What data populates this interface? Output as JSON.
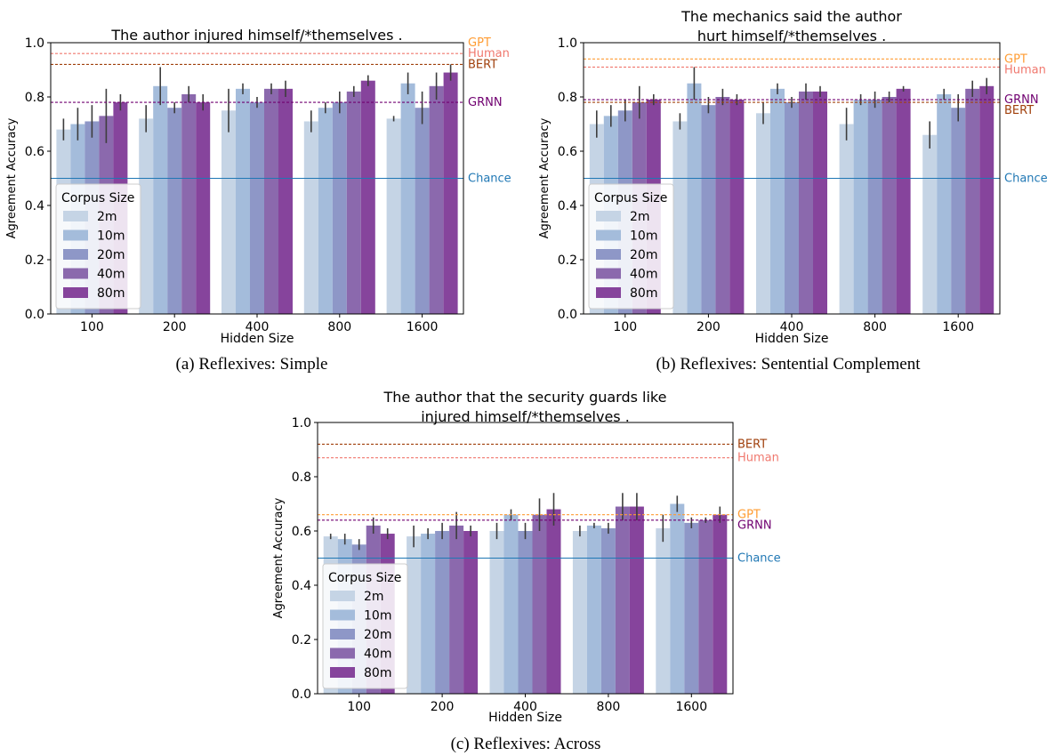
{
  "figure": {
    "corpus_sizes": [
      "2m",
      "10m",
      "20m",
      "40m",
      "80m"
    ],
    "colors": {
      "bars": [
        "#c5d4e5",
        "#a4bcdb",
        "#8e97c7",
        "#8b69ad",
        "#86449c"
      ],
      "errorbar": "#3d3d3d",
      "chance": "#1f77b4",
      "GPT": "#ff9c33",
      "Human": "#f0786e",
      "BERT": "#a0400c",
      "GRNN": "#700070"
    }
  },
  "chart_data": [
    {
      "type": "bar",
      "caption": "(a)  Reflexives: Simple",
      "title_lines": [
        "The author injured himself/*themselves ."
      ],
      "xlabel": "Hidden Size",
      "ylabel": "Agreement Accuracy",
      "ylim": [
        0,
        1
      ],
      "yticks": [
        "0.0",
        "0.2",
        "0.4",
        "0.6",
        "0.8",
        "1.0"
      ],
      "categories": [
        "100",
        "200",
        "400",
        "800",
        "1600"
      ],
      "legend": {
        "title": "Corpus Size",
        "position": "lower-left"
      },
      "series": [
        {
          "name": "2m",
          "values": [
            0.68,
            0.72,
            0.75,
            0.71,
            0.72
          ],
          "err": [
            0.04,
            0.05,
            0.08,
            0.04,
            0.01
          ]
        },
        {
          "name": "10m",
          "values": [
            0.7,
            0.84,
            0.83,
            0.76,
            0.85
          ],
          "err": [
            0.06,
            0.07,
            0.02,
            0.02,
            0.04
          ]
        },
        {
          "name": "20m",
          "values": [
            0.71,
            0.76,
            0.78,
            0.78,
            0.76
          ],
          "err": [
            0.06,
            0.02,
            0.02,
            0.04,
            0.06
          ]
        },
        {
          "name": "40m",
          "values": [
            0.73,
            0.81,
            0.83,
            0.82,
            0.84
          ],
          "err": [
            0.1,
            0.03,
            0.02,
            0.02,
            0.05
          ]
        },
        {
          "name": "80m",
          "values": [
            0.78,
            0.78,
            0.83,
            0.86,
            0.89
          ],
          "err": [
            0.03,
            0.03,
            0.03,
            0.02,
            0.03
          ]
        }
      ],
      "reference_lines": [
        {
          "label": "GPT",
          "value": 1.0,
          "color": "#ff9c33",
          "style": "dashed"
        },
        {
          "label": "Human",
          "value": 0.96,
          "color": "#f0786e",
          "style": "dashed"
        },
        {
          "label": "BERT",
          "value": 0.92,
          "color": "#a0400c",
          "style": "dashed"
        },
        {
          "label": "GRNN",
          "value": 0.78,
          "color": "#700070",
          "style": "dashed"
        },
        {
          "label": "Chance",
          "value": 0.5,
          "color": "#1f77b4",
          "style": "solid"
        }
      ]
    },
    {
      "type": "bar",
      "caption": "(b)  Reflexives: Sentential Complement",
      "title_lines": [
        "The mechanics said the author",
        "hurt himself/*themselves ."
      ],
      "xlabel": "Hidden Size",
      "ylabel": "Agreement Accuracy",
      "ylim": [
        0,
        1
      ],
      "yticks": [
        "0.0",
        "0.2",
        "0.4",
        "0.6",
        "0.8",
        "1.0"
      ],
      "categories": [
        "100",
        "200",
        "400",
        "800",
        "1600"
      ],
      "legend": {
        "title": "Corpus Size",
        "position": "lower-left"
      },
      "series": [
        {
          "name": "2m",
          "values": [
            0.7,
            0.71,
            0.74,
            0.7,
            0.66
          ],
          "err": [
            0.05,
            0.03,
            0.04,
            0.06,
            0.05
          ]
        },
        {
          "name": "10m",
          "values": [
            0.73,
            0.85,
            0.83,
            0.79,
            0.81
          ],
          "err": [
            0.04,
            0.06,
            0.02,
            0.02,
            0.02
          ]
        },
        {
          "name": "20m",
          "values": [
            0.75,
            0.77,
            0.78,
            0.79,
            0.76
          ],
          "err": [
            0.04,
            0.03,
            0.02,
            0.03,
            0.05
          ]
        },
        {
          "name": "40m",
          "values": [
            0.78,
            0.8,
            0.82,
            0.8,
            0.83
          ],
          "err": [
            0.06,
            0.03,
            0.03,
            0.02,
            0.03
          ]
        },
        {
          "name": "80m",
          "values": [
            0.79,
            0.79,
            0.82,
            0.83,
            0.84
          ],
          "err": [
            0.02,
            0.02,
            0.02,
            0.01,
            0.03
          ]
        }
      ],
      "reference_lines": [
        {
          "label": "GPT",
          "value": 0.94,
          "color": "#ff9c33",
          "style": "dashed"
        },
        {
          "label": "Human",
          "value": 0.91,
          "color": "#f0786e",
          "style": "dashed"
        },
        {
          "label": "GRNN",
          "value": 0.79,
          "color": "#700070",
          "style": "dashed"
        },
        {
          "label": "BERT",
          "value": 0.78,
          "color": "#a0400c",
          "style": "dashed"
        },
        {
          "label": "Chance",
          "value": 0.5,
          "color": "#1f77b4",
          "style": "solid"
        }
      ]
    },
    {
      "type": "bar",
      "caption": "(c)  Reflexives: Across",
      "title_lines": [
        "The author that the security guards like",
        "injured himself/*themselves ."
      ],
      "xlabel": "Hidden Size",
      "ylabel": "Agreement Accuracy",
      "ylim": [
        0,
        1
      ],
      "yticks": [
        "0.0",
        "0.2",
        "0.4",
        "0.6",
        "0.8",
        "1.0"
      ],
      "categories": [
        "100",
        "200",
        "400",
        "800",
        "1600"
      ],
      "legend": {
        "title": "Corpus Size",
        "position": "lower-left"
      },
      "series": [
        {
          "name": "2m",
          "values": [
            0.58,
            0.58,
            0.6,
            0.6,
            0.61
          ],
          "err": [
            0.01,
            0.04,
            0.03,
            0.02,
            0.05
          ]
        },
        {
          "name": "10m",
          "values": [
            0.57,
            0.59,
            0.66,
            0.62,
            0.7
          ],
          "err": [
            0.02,
            0.02,
            0.02,
            0.01,
            0.03
          ]
        },
        {
          "name": "20m",
          "values": [
            0.55,
            0.6,
            0.6,
            0.61,
            0.63
          ],
          "err": [
            0.02,
            0.03,
            0.03,
            0.02,
            0.02
          ]
        },
        {
          "name": "40m",
          "values": [
            0.62,
            0.62,
            0.66,
            0.69,
            0.64
          ],
          "err": [
            0.03,
            0.05,
            0.06,
            0.05,
            0.01
          ]
        },
        {
          "name": "80m",
          "values": [
            0.59,
            0.6,
            0.68,
            0.69,
            0.66
          ],
          "err": [
            0.02,
            0.02,
            0.06,
            0.05,
            0.03
          ]
        }
      ],
      "reference_lines": [
        {
          "label": "BERT",
          "value": 0.92,
          "color": "#a0400c",
          "style": "dashed"
        },
        {
          "label": "Human",
          "value": 0.87,
          "color": "#f0786e",
          "style": "dashed"
        },
        {
          "label": "GPT",
          "value": 0.66,
          "color": "#ff9c33",
          "style": "dashed"
        },
        {
          "label": "GRNN",
          "value": 0.64,
          "color": "#700070",
          "style": "dashed"
        },
        {
          "label": "Chance",
          "value": 0.5,
          "color": "#1f77b4",
          "style": "solid"
        }
      ]
    }
  ]
}
